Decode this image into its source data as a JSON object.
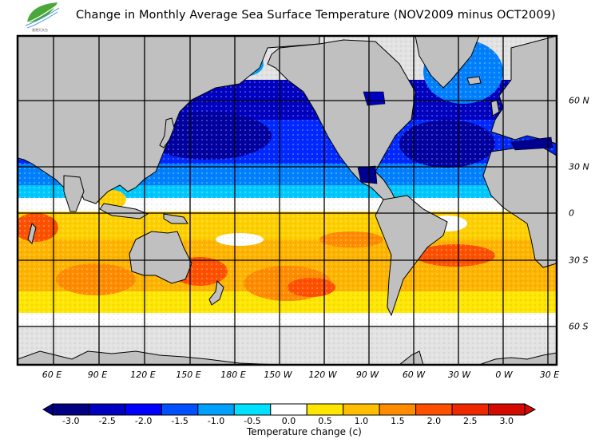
{
  "title": "Change in Monthly Average Sea Surface Temperature (NOV2009 minus OCT2009)",
  "logo": {
    "icon": "leaf-logo-icon",
    "text": "香港天文台"
  },
  "map": {
    "projection": "cylindrical",
    "lon_labels": [
      "60 E",
      "90 E",
      "120 E",
      "150 E",
      "180 E",
      "150 W",
      "120 W",
      "90 W",
      "60 W",
      "30 W",
      "0 W",
      "30 E"
    ],
    "lat_labels": [
      "60 N",
      "30 N",
      "0",
      "30 S",
      "60 S"
    ],
    "colors": {
      "land": "#c0c0c0",
      "ice": "#e2e2e2",
      "coast": "#000000",
      "grid": "#000000"
    }
  },
  "colorbar": {
    "label": "Temperature change  (c)",
    "ticks": [
      "-3.0",
      "-2.5",
      "-2.0",
      "-1.5",
      "-1.0",
      "-0.5",
      "0.0",
      "0.5",
      "1.0",
      "1.5",
      "2.0",
      "2.5",
      "3.0"
    ],
    "colors": [
      "#000080",
      "#0000c0",
      "#0000ff",
      "#0050ff",
      "#00a0ff",
      "#00e0ff",
      "#ffffff",
      "#ffe600",
      "#ffbe00",
      "#ff8c00",
      "#ff5000",
      "#f02800",
      "#d40a00"
    ],
    "under_color": "#000080",
    "over_color": "#d40a00"
  }
}
